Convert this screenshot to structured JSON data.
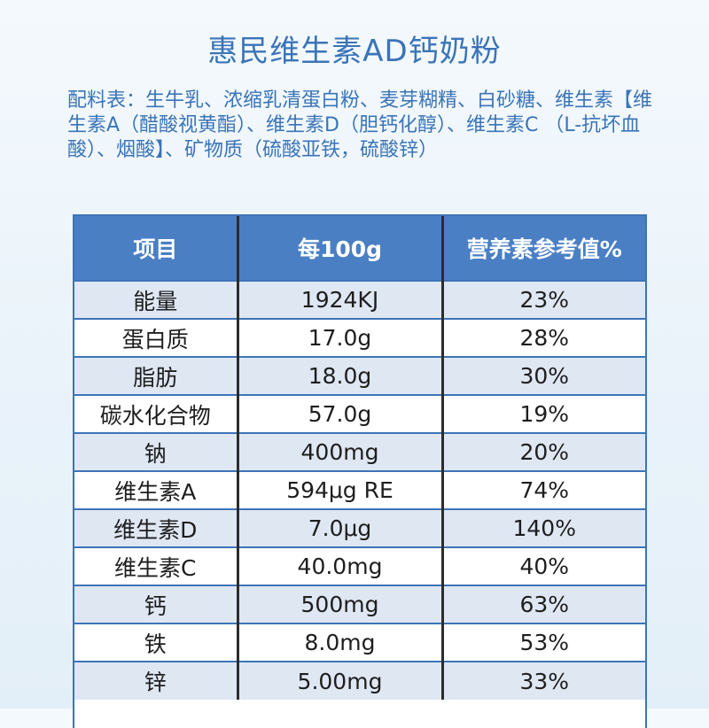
{
  "title": "惠民维生素AD钙奶粉",
  "ingredients": "配料表：生牛乳、浓缩乳清蛋白粉、麦芽糊精、白砂糖、维生素【维生素A（醋酸视黄酯）、维生素D（胆钙化醇）、维生素C （L-抗坏血酸）、烟酸】、矿物质（硫酸亚铁，硫酸锌）",
  "table": {
    "headers": [
      "项目",
      "每100g",
      "营养素参考值%"
    ],
    "rows": [
      [
        "能量",
        "1924KJ",
        "23%"
      ],
      [
        "蛋白质",
        "17.0g",
        "28%"
      ],
      [
        "脂肪",
        "18.0g",
        "30%"
      ],
      [
        "碳水化合物",
        "57.0g",
        "19%"
      ],
      [
        "钠",
        "400mg",
        "20%"
      ],
      [
        "维生素A",
        "594μg RE",
        "74%"
      ],
      [
        "维生素D",
        "7.0μg",
        "140%"
      ],
      [
        "维生素C",
        "40.0mg",
        "40%"
      ],
      [
        "钙",
        "500mg",
        "63%"
      ],
      [
        "铁",
        "8.0mg",
        "53%"
      ],
      [
        "锌",
        "5.00mg",
        "33%"
      ]
    ]
  }
}
